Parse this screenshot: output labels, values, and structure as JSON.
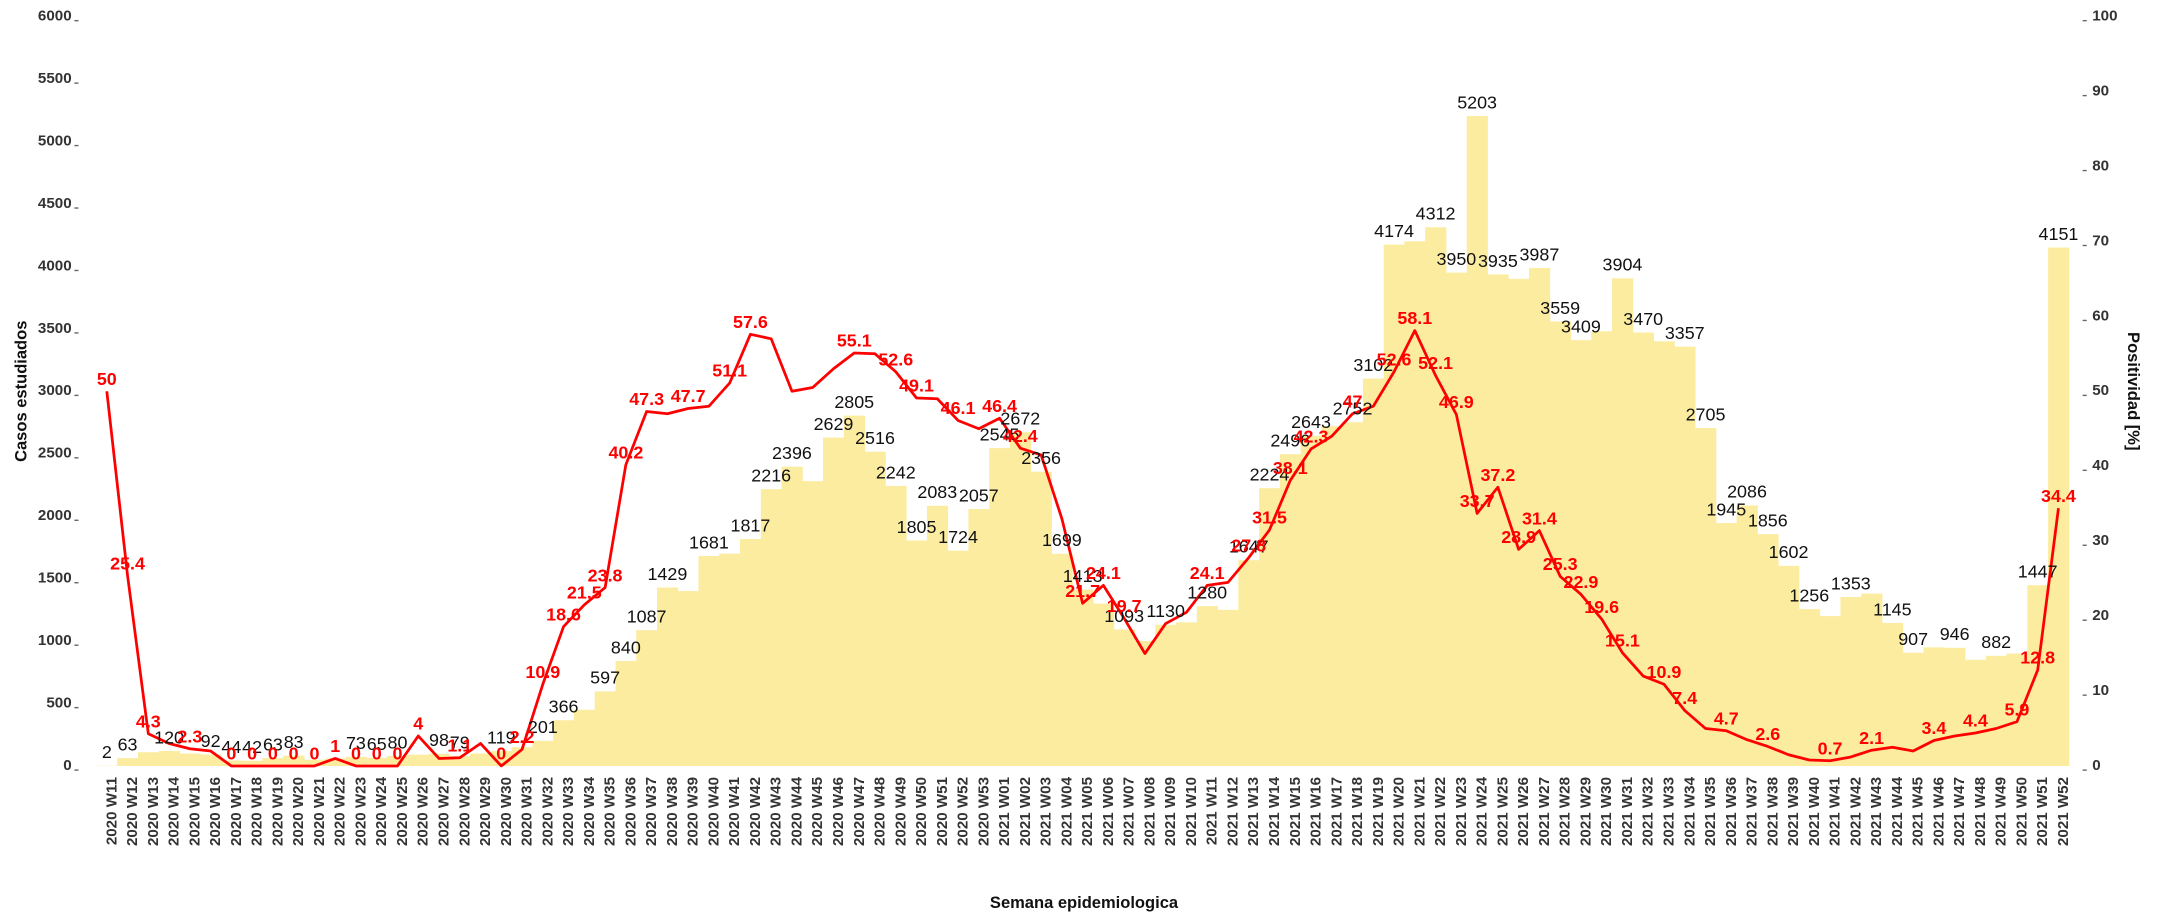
{
  "chart_data": {
    "type": "bar",
    "y_label": "Casos estudiados",
    "y2_label": "Positividad [%]",
    "x_label": "Semana epidemiologica",
    "categories": [
      "2020 W11",
      "2020 W12",
      "2020 W13",
      "2020 W14",
      "2020 W15",
      "2020 W16",
      "2020 W17",
      "2020 W18",
      "2020 W19",
      "2020 W20",
      "2020 W21",
      "2020 W22",
      "2020 W23",
      "2020 W24",
      "2020 W25",
      "2020 W26",
      "2020 W27",
      "2020 W28",
      "2020 W29",
      "2020 W30",
      "2020 W31",
      "2020 W32",
      "2020 W33",
      "2020 W34",
      "2020 W35",
      "2020 W36",
      "2020 W37",
      "2020 W38",
      "2020 W39",
      "2020 W40",
      "2020 W41",
      "2020 W42",
      "2020 W43",
      "2020 W44",
      "2020 W45",
      "2020 W46",
      "2020 W47",
      "2020 W48",
      "2020 W49",
      "2020 W50",
      "2020 W51",
      "2020 W52",
      "2020 W53",
      "2021 W01",
      "2021 W02",
      "2021 W03",
      "2021 W04",
      "2021 W05",
      "2021 W06",
      "2021 W07",
      "2021 W08",
      "2021 W09",
      "2021 W10",
      "2021 W11",
      "2021 W12",
      "2021 W13",
      "2021 W14",
      "2021 W15",
      "2021 W16",
      "2021 W17",
      "2021 W18",
      "2021 W19",
      "2021 W20",
      "2021 W21",
      "2021 W22",
      "2021 W23",
      "2021 W24",
      "2021 W25",
      "2021 W26",
      "2021 W27",
      "2021 W28",
      "2021 W29",
      "2021 W30",
      "2021 W31",
      "2021 W32",
      "2021 W33",
      "2021 W34",
      "2021 W35",
      "2021 W36",
      "2021 W37",
      "2021 W38",
      "2021 W39",
      "2021 W40",
      "2021 W41",
      "2021 W42",
      "2021 W43",
      "2021 W44",
      "2021 W45",
      "2021 W46",
      "2021 W47",
      "2021 W48",
      "2021 W49",
      "2021 W50",
      "2021 W51",
      "2021 W52"
    ],
    "series": [
      {
        "type": "bar",
        "color": "#fcec9f",
        "values": [
          2,
          63,
          110,
          120,
          100,
          92,
          44,
          42,
          63,
          83,
          50,
          60,
          73,
          65,
          80,
          90,
          98,
          79,
          100,
          119,
          150,
          201,
          366,
          450,
          597,
          840,
          1087,
          1429,
          1400,
          1681,
          1700,
          1817,
          2216,
          2396,
          2280,
          2629,
          2805,
          2516,
          2242,
          1805,
          2083,
          1724,
          2057,
          2545,
          2672,
          2356,
          1699,
          1413,
          1300,
          1093,
          1000,
          1130,
          1150,
          1280,
          1250,
          1647,
          2224,
          2496,
          2643,
          2720,
          2752,
          3102,
          4174,
          4200,
          4312,
          3950,
          5203,
          3935,
          3900,
          3987,
          3559,
          3409,
          3480,
          3904,
          3470,
          3400,
          3357,
          2705,
          1945,
          2086,
          1856,
          1602,
          1256,
          1200,
          1353,
          1380,
          1145,
          907,
          950,
          946,
          850,
          882,
          900,
          1447,
          4151
        ],
        "value_labels": [
          "2",
          "63",
          null,
          "120",
          null,
          "92",
          "44",
          "42",
          "63",
          "83",
          null,
          null,
          "73",
          "65",
          "80",
          null,
          "98",
          "79",
          null,
          "119",
          null,
          "201",
          "366",
          null,
          "597",
          "840",
          "1087",
          "1429",
          null,
          "1681",
          null,
          "1817",
          "2216",
          "2396",
          null,
          "2629",
          "2805",
          "2516",
          "2242",
          "1805",
          "2083",
          "1724",
          "2057",
          "2545",
          "2672",
          "2356",
          "1699",
          "1413",
          null,
          "1093",
          null,
          "1130",
          null,
          "1280",
          null,
          "1647",
          "2224",
          "2496",
          "2643",
          null,
          "2752",
          "3102",
          "4174",
          null,
          "4312",
          "3950",
          "5203",
          "3935",
          null,
          "3987",
          "3559",
          "3409",
          null,
          "3904",
          "3470",
          null,
          "3357",
          "2705",
          "1945",
          "2086",
          "1856",
          "1602",
          "1256",
          null,
          "1353",
          null,
          "1145",
          "907",
          null,
          "946",
          null,
          "882",
          null,
          "1447",
          "4151"
        ]
      },
      {
        "type": "line",
        "axis": "y2",
        "color": "#ff0000",
        "values": [
          50,
          25.4,
          4.3,
          3,
          2.3,
          2,
          0,
          0,
          0,
          0,
          0,
          1,
          0,
          0,
          0,
          4,
          1,
          1.1,
          3,
          0,
          2.2,
          10.9,
          18.6,
          21.5,
          23.8,
          40.2,
          47.3,
          47,
          47.7,
          48,
          51.1,
          57.6,
          57,
          50,
          50.5,
          53,
          55.1,
          55,
          52.6,
          49.1,
          49,
          46.1,
          45,
          46.4,
          42.4,
          41.5,
          33,
          21.7,
          24.1,
          19.7,
          15,
          19,
          20.5,
          24.1,
          24.5,
          27.8,
          31.5,
          38.1,
          42.3,
          44,
          47,
          48,
          52.6,
          58.1,
          52.1,
          46.9,
          33.7,
          37.2,
          28.9,
          31.4,
          25.3,
          22.9,
          19.6,
          15.1,
          12,
          10.9,
          7.4,
          5,
          4.7,
          3.5,
          2.6,
          1.5,
          0.8,
          0.7,
          1.2,
          2.1,
          2.5,
          2,
          3.4,
          4,
          4.4,
          5,
          5.9,
          12.8,
          34.4
        ],
        "value_labels": [
          "50",
          "25.4",
          "4.3",
          null,
          "2.3",
          null,
          "0",
          "0",
          "0",
          "0",
          "0",
          "1",
          "0",
          "0",
          "0",
          "4",
          null,
          "1.1",
          null,
          "0",
          "2.2",
          "10.9",
          "18.6",
          "21.5",
          "23.8",
          "40.2",
          "47.3",
          null,
          "47.7",
          null,
          "51.1",
          "57.6",
          null,
          null,
          null,
          null,
          "55.1",
          null,
          "52.6",
          "49.1",
          null,
          "46.1",
          null,
          "46.4",
          "42.4",
          null,
          null,
          "21.7",
          "24.1",
          "19.7",
          null,
          null,
          null,
          "24.1",
          null,
          "27.8",
          "31.5",
          "38.1",
          "42.3",
          null,
          "47",
          null,
          "52.6",
          "58.1",
          "52.1",
          "46.9",
          "33.7",
          "37.2",
          "28.9",
          "31.4",
          "25.3",
          "22.9",
          "19.6",
          "15.1",
          null,
          "10.9",
          "7.4",
          null,
          "4.7",
          null,
          "2.6",
          null,
          null,
          "0.7",
          null,
          "2.1",
          null,
          null,
          "3.4",
          null,
          "4.4",
          null,
          "5.9",
          "12.8",
          "34.4"
        ]
      }
    ],
    "ylim": [
      0,
      6000
    ],
    "yticks": [
      0,
      500,
      1000,
      1500,
      2000,
      2500,
      3000,
      3500,
      4000,
      4500,
      5000,
      5500,
      6000
    ],
    "y2lim": [
      0,
      100
    ],
    "y2ticks": [
      0,
      10,
      20,
      30,
      40,
      50,
      60,
      70,
      80,
      90,
      100
    ],
    "grid": false
  }
}
